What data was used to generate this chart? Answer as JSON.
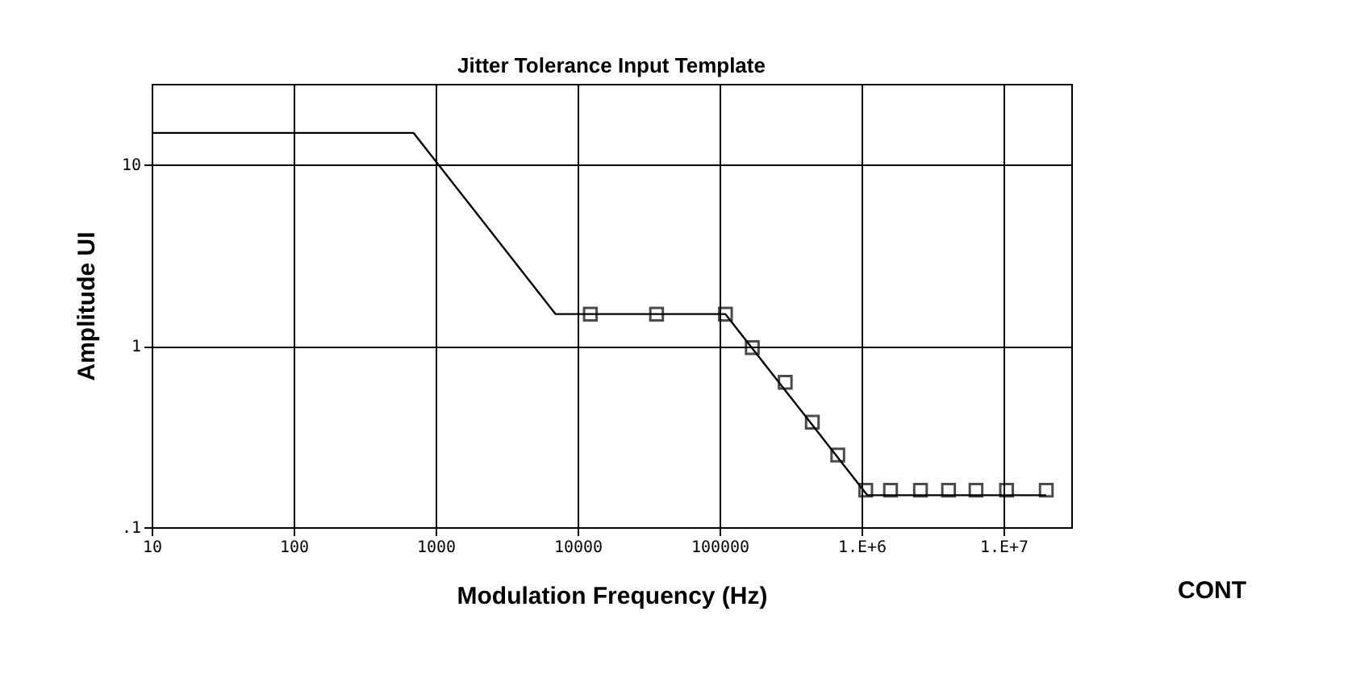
{
  "chart_data": {
    "type": "line",
    "title": "Jitter Tolerance Input Template",
    "xlabel": "Modulation Frequency (Hz)",
    "ylabel": "Amplitude UI",
    "annotations": [
      "CONT"
    ],
    "log": "xy",
    "grid": true,
    "xlim": [
      10,
      30000000
    ],
    "ylim": [
      0.1,
      28
    ],
    "xticks": [
      10,
      100,
      1000,
      10000,
      100000,
      {
        "value": 1000000,
        "label": "1.E+6"
      },
      {
        "value": 10000000,
        "label": "1.E+7"
      }
    ],
    "yticks": [
      {
        "value": 0.1,
        "label": ".1"
      },
      1,
      10
    ],
    "series": [
      {
        "color": "#000000",
        "marker": "none",
        "x": [
          10,
          700,
          7000,
          110000,
          1100000,
          20000000
        ],
        "values": [
          15,
          15,
          1.5,
          1.5,
          0.15,
          0.15
        ]
      },
      {
        "type": "scatter",
        "color": "#000000",
        "marker": "square",
        "x": [
          12300,
          36000,
          110000,
          170000,
          290000,
          450000,
          680000,
          1070000,
          1600000,
          2600000,
          4100000,
          6400000,
          10500000,
          20000000
        ],
        "values": [
          1.5,
          1.5,
          1.5,
          0.98,
          0.63,
          0.38,
          0.25,
          0.16,
          0.16,
          0.16,
          0.16,
          0.16,
          0.16,
          0.16
        ]
      }
    ]
  }
}
